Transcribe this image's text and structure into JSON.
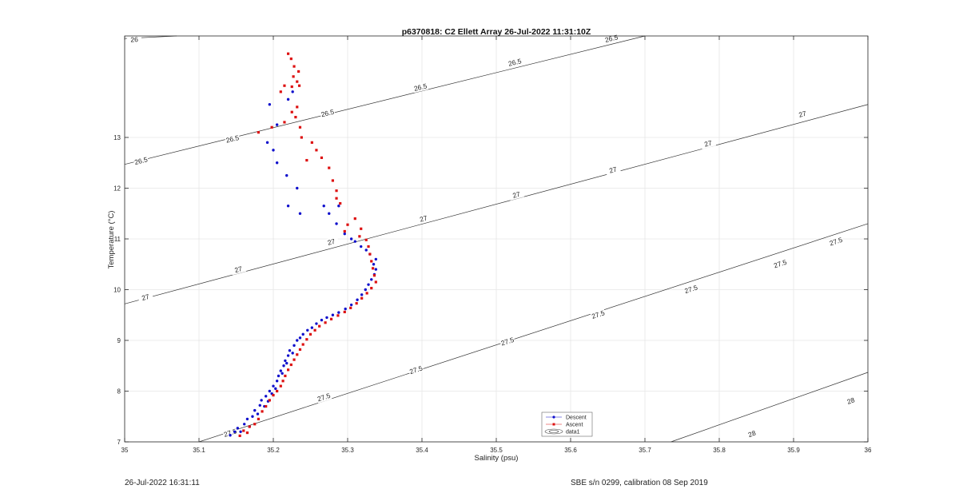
{
  "chart_data": {
    "type": "scatter",
    "title": "p6370818: C2 Ellett Array 26-Jul-2022 11:31:10Z",
    "xlabel": "Salinity (psu)",
    "ylabel": "Temperature (°C)",
    "xlim": [
      35,
      36
    ],
    "ylim": [
      7,
      15
    ],
    "xticks": [
      "35",
      "35.1",
      "35.2",
      "35.3",
      "35.4",
      "35.5",
      "35.6",
      "35.7",
      "35.8",
      "35.9",
      "36"
    ],
    "yticks": [
      "7",
      "8",
      "9",
      "10",
      "11",
      "12",
      "13"
    ],
    "grid": true,
    "legend_position": "lower-middle",
    "contours": [
      {
        "label": "26",
        "points": [
          [
            35.0,
            14.95
          ],
          [
            35.07,
            15.0
          ]
        ],
        "label_positions": [
          [
            35.013,
            14.93
          ]
        ]
      },
      {
        "label": "26.5",
        "points": [
          [
            35.0,
            12.47
          ],
          [
            35.7,
            15.0
          ]
        ],
        "label_positions": [
          [
            35.022,
            12.54
          ],
          [
            35.145,
            12.97
          ],
          [
            35.273,
            13.48
          ],
          [
            35.398,
            13.99
          ],
          [
            35.525,
            14.48
          ],
          [
            35.655,
            14.95
          ]
        ]
      },
      {
        "label": "27",
        "points": [
          [
            35.0,
            9.72
          ],
          [
            36.0,
            13.65
          ]
        ],
        "label_positions": [
          [
            35.028,
            9.85
          ],
          [
            35.153,
            10.4
          ],
          [
            35.278,
            10.94
          ],
          [
            35.402,
            11.4
          ],
          [
            35.527,
            11.87
          ],
          [
            35.657,
            12.36
          ],
          [
            35.785,
            12.88
          ],
          [
            35.912,
            13.46
          ]
        ]
      },
      {
        "label": "27.5",
        "points": [
          [
            35.1,
            7.0
          ],
          [
            36.0,
            11.3
          ]
        ],
        "label_positions": [
          [
            35.142,
            7.18
          ],
          [
            35.268,
            7.88
          ],
          [
            35.392,
            8.42
          ],
          [
            35.515,
            8.98
          ],
          [
            35.637,
            9.51
          ],
          [
            35.762,
            10.01
          ],
          [
            35.882,
            10.51
          ],
          [
            35.957,
            10.95
          ]
        ]
      },
      {
        "label": "28",
        "points": [
          [
            35.735,
            7.0
          ],
          [
            36.0,
            8.37
          ]
        ],
        "label_positions": [
          [
            35.844,
            7.16
          ],
          [
            35.977,
            7.81
          ]
        ]
      }
    ],
    "series": [
      {
        "name": "Descent",
        "color": "#1010cc",
        "marker": "circle",
        "points": [
          [
            35.142,
            7.13
          ],
          [
            35.148,
            7.2
          ],
          [
            35.152,
            7.27
          ],
          [
            35.156,
            7.2
          ],
          [
            35.161,
            7.35
          ],
          [
            35.165,
            7.45
          ],
          [
            35.168,
            7.3
          ],
          [
            35.172,
            7.5
          ],
          [
            35.175,
            7.62
          ],
          [
            35.179,
            7.55
          ],
          [
            35.182,
            7.72
          ],
          [
            35.184,
            7.82
          ],
          [
            35.188,
            7.7
          ],
          [
            35.19,
            7.9
          ],
          [
            35.193,
            7.8
          ],
          [
            35.195,
            8.0
          ],
          [
            35.198,
            7.95
          ],
          [
            35.2,
            8.1
          ],
          [
            35.203,
            8.05
          ],
          [
            35.205,
            8.2
          ],
          [
            35.207,
            8.3
          ],
          [
            35.21,
            8.4
          ],
          [
            35.212,
            8.35
          ],
          [
            35.214,
            8.5
          ],
          [
            35.216,
            8.6
          ],
          [
            35.218,
            8.55
          ],
          [
            35.22,
            8.7
          ],
          [
            35.222,
            8.8
          ],
          [
            35.226,
            8.75
          ],
          [
            35.228,
            8.9
          ],
          [
            35.232,
            9.0
          ],
          [
            35.236,
            9.05
          ],
          [
            35.24,
            9.12
          ],
          [
            35.246,
            9.2
          ],
          [
            35.252,
            9.25
          ],
          [
            35.258,
            9.33
          ],
          [
            35.265,
            9.4
          ],
          [
            35.272,
            9.45
          ],
          [
            35.28,
            9.5
          ],
          [
            35.288,
            9.55
          ],
          [
            35.297,
            9.62
          ],
          [
            35.305,
            9.7
          ],
          [
            35.313,
            9.8
          ],
          [
            35.319,
            9.9
          ],
          [
            35.324,
            10.0
          ],
          [
            35.328,
            10.1
          ],
          [
            35.332,
            10.2
          ],
          [
            35.336,
            10.3
          ],
          [
            35.338,
            10.4
          ],
          [
            35.335,
            10.5
          ],
          [
            35.338,
            10.6
          ],
          [
            35.33,
            10.7
          ],
          [
            35.325,
            10.78
          ],
          [
            35.318,
            10.85
          ],
          [
            35.31,
            10.95
          ],
          [
            35.305,
            11.0
          ],
          [
            35.296,
            11.1
          ],
          [
            35.285,
            11.3
          ],
          [
            35.275,
            11.5
          ],
          [
            35.268,
            11.65
          ],
          [
            35.288,
            11.65
          ],
          [
            35.236,
            11.5
          ],
          [
            35.22,
            11.65
          ],
          [
            35.232,
            12.0
          ],
          [
            35.218,
            12.25
          ],
          [
            35.205,
            12.5
          ],
          [
            35.2,
            12.75
          ],
          [
            35.192,
            12.9
          ],
          [
            35.205,
            13.25
          ],
          [
            35.195,
            13.65
          ],
          [
            35.22,
            13.75
          ],
          [
            35.226,
            13.9
          ]
        ]
      },
      {
        "name": "Ascent",
        "color": "#dd1111",
        "marker": "square",
        "points": [
          [
            35.155,
            7.12
          ],
          [
            35.16,
            7.22
          ],
          [
            35.165,
            7.18
          ],
          [
            35.168,
            7.3
          ],
          [
            35.175,
            7.35
          ],
          [
            35.18,
            7.45
          ],
          [
            35.185,
            7.6
          ],
          [
            35.19,
            7.7
          ],
          [
            35.195,
            7.82
          ],
          [
            35.2,
            7.92
          ],
          [
            35.205,
            8.0
          ],
          [
            35.21,
            8.1
          ],
          [
            35.213,
            8.2
          ],
          [
            35.216,
            8.3
          ],
          [
            35.22,
            8.42
          ],
          [
            35.224,
            8.52
          ],
          [
            35.228,
            8.62
          ],
          [
            35.232,
            8.72
          ],
          [
            35.236,
            8.82
          ],
          [
            35.24,
            8.92
          ],
          [
            35.245,
            9.02
          ],
          [
            35.25,
            9.12
          ],
          [
            35.256,
            9.2
          ],
          [
            35.262,
            9.28
          ],
          [
            35.27,
            9.35
          ],
          [
            35.278,
            9.42
          ],
          [
            35.287,
            9.49
          ],
          [
            35.296,
            9.56
          ],
          [
            35.304,
            9.64
          ],
          [
            35.312,
            9.73
          ],
          [
            35.319,
            9.83
          ],
          [
            35.326,
            9.93
          ],
          [
            35.332,
            10.03
          ],
          [
            35.338,
            10.15
          ],
          [
            35.336,
            10.28
          ],
          [
            35.334,
            10.42
          ],
          [
            35.332,
            10.56
          ],
          [
            35.33,
            10.7
          ],
          [
            35.328,
            10.85
          ],
          [
            35.325,
            10.98
          ],
          [
            35.316,
            11.05
          ],
          [
            35.318,
            11.2
          ],
          [
            35.31,
            11.4
          ],
          [
            35.3,
            11.28
          ],
          [
            35.296,
            11.15
          ],
          [
            35.29,
            11.7
          ],
          [
            35.285,
            11.8
          ],
          [
            35.285,
            11.95
          ],
          [
            35.28,
            12.15
          ],
          [
            35.275,
            12.4
          ],
          [
            35.265,
            12.6
          ],
          [
            35.258,
            12.75
          ],
          [
            35.252,
            12.9
          ],
          [
            35.245,
            12.55
          ],
          [
            35.238,
            13.0
          ],
          [
            35.236,
            13.2
          ],
          [
            35.23,
            13.4
          ],
          [
            35.232,
            13.6
          ],
          [
            35.225,
            13.5
          ],
          [
            35.215,
            13.3
          ],
          [
            35.198,
            13.2
          ],
          [
            35.18,
            13.1
          ],
          [
            35.21,
            13.9
          ],
          [
            35.225,
            14.0
          ],
          [
            35.232,
            14.1
          ],
          [
            35.227,
            14.2
          ],
          [
            35.234,
            14.3
          ],
          [
            35.228,
            14.4
          ],
          [
            35.224,
            14.55
          ],
          [
            35.22,
            14.65
          ],
          [
            35.235,
            14.02
          ],
          [
            35.215,
            14.02
          ]
        ]
      }
    ]
  },
  "legend": {
    "descent_label": "Descent",
    "ascent_label": "Ascent",
    "contour_label": "data1"
  },
  "footer": {
    "left": "26-Jul-2022 16:31:11",
    "right": "SBE s/n 0299, calibration 08 Sep 2019"
  }
}
